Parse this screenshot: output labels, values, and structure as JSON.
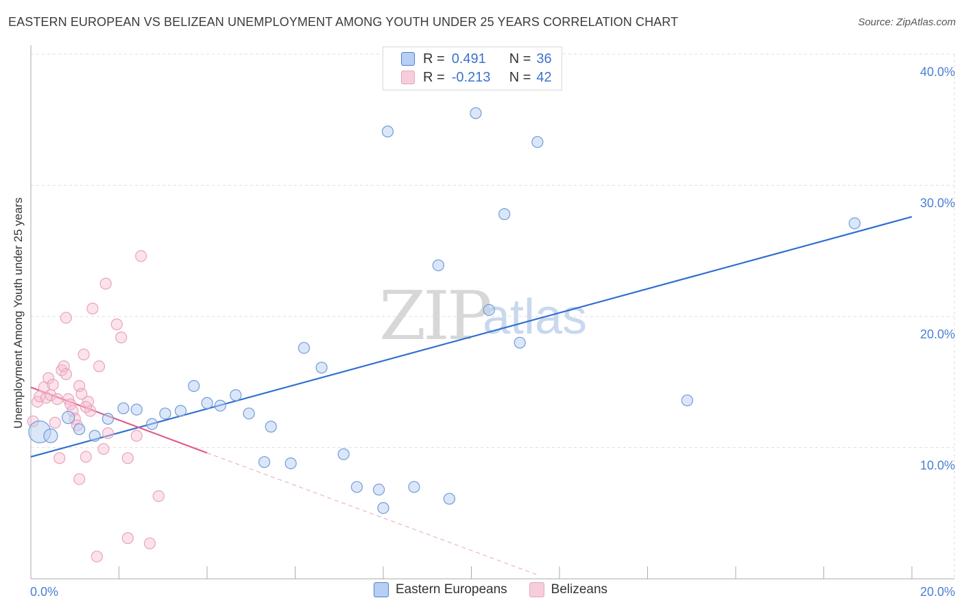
{
  "title": "EASTERN EUROPEAN VS BELIZEAN UNEMPLOYMENT AMONG YOUTH UNDER 25 YEARS CORRELATION CHART",
  "source": "Source: ZipAtlas.com",
  "watermark": {
    "zip": "ZIP",
    "atlas": "atlas"
  },
  "legend": {
    "rows": [
      {
        "r_label": "R =",
        "r_value": "0.491",
        "n_label": "N =",
        "n_value": "36"
      },
      {
        "r_label": "R =",
        "r_value": "-0.213",
        "n_label": "N =",
        "n_value": "42"
      }
    ]
  },
  "bottom_legend": [
    "Eastern Europeans",
    "Belizeans"
  ],
  "colors": {
    "blue": "#4a7fd4",
    "blue_fill": "#b7cff2",
    "pink": "#e0608a",
    "pink_fill": "#f6bfd2",
    "grid": "#dcdcdc"
  },
  "chart_data": {
    "type": "scatter",
    "title": "EASTERN EUROPEAN VS BELIZEAN UNEMPLOYMENT AMONG YOUTH UNDER 25 YEARS CORRELATION CHART",
    "xlabel": "",
    "ylabel": "Unemployment Among Youth under 25 years",
    "xlim": [
      0,
      20
    ],
    "ylim": [
      0,
      40
    ],
    "x_tick_labels": [
      "0.0%",
      "20.0%"
    ],
    "y_ticks": [
      10,
      20,
      30,
      40
    ],
    "y_tick_labels": [
      "10.0%",
      "20.0%",
      "30.0%",
      "40.0%"
    ],
    "series": [
      {
        "name": "Eastern Europeans",
        "color": "#4a7fd4",
        "r": 0.491,
        "n": 36,
        "trend": {
          "x": [
            0.0,
            20.0
          ],
          "y": [
            9.3,
            27.6
          ],
          "dashed_extension": false
        },
        "points": [
          [
            0.2,
            11.2,
            16
          ],
          [
            0.45,
            10.9,
            10
          ],
          [
            0.85,
            12.3,
            9
          ],
          [
            1.1,
            11.4,
            8
          ],
          [
            1.45,
            10.9,
            8
          ],
          [
            1.75,
            12.2,
            8
          ],
          [
            2.1,
            13.0,
            8
          ],
          [
            2.4,
            12.9,
            8
          ],
          [
            2.75,
            11.8,
            8
          ],
          [
            3.05,
            12.6,
            8
          ],
          [
            3.4,
            12.8,
            8
          ],
          [
            3.7,
            14.7,
            8
          ],
          [
            4.0,
            13.4,
            8
          ],
          [
            4.3,
            13.2,
            8
          ],
          [
            4.65,
            14.0,
            8
          ],
          [
            4.95,
            12.6,
            8
          ],
          [
            5.3,
            8.9,
            8
          ],
          [
            5.45,
            11.6,
            8
          ],
          [
            5.9,
            8.8,
            8
          ],
          [
            6.2,
            17.6,
            8
          ],
          [
            6.6,
            16.1,
            8
          ],
          [
            7.1,
            9.5,
            8
          ],
          [
            7.4,
            7.0,
            8
          ],
          [
            7.9,
            6.8,
            8
          ],
          [
            8.0,
            5.4,
            8
          ],
          [
            8.1,
            34.1,
            8
          ],
          [
            8.7,
            7.0,
            8
          ],
          [
            9.25,
            23.9,
            8
          ],
          [
            9.5,
            6.1,
            8
          ],
          [
            10.1,
            35.5,
            8
          ],
          [
            10.4,
            20.5,
            8
          ],
          [
            10.75,
            27.8,
            8
          ],
          [
            11.1,
            18.0,
            8
          ],
          [
            11.5,
            33.3,
            8
          ],
          [
            14.9,
            13.6,
            8
          ],
          [
            18.7,
            27.1,
            8
          ]
        ]
      },
      {
        "name": "Belizeans",
        "color": "#e0608a",
        "r": -0.213,
        "n": 42,
        "trend": {
          "x": [
            0.0,
            4.0
          ],
          "y": [
            14.6,
            9.6
          ],
          "dashed_to": [
            11.5,
            0.3
          ]
        },
        "points": [
          [
            0.05,
            12.0,
            8
          ],
          [
            0.15,
            13.5,
            8
          ],
          [
            0.2,
            13.9,
            8
          ],
          [
            0.3,
            14.6,
            8
          ],
          [
            0.35,
            13.8,
            8
          ],
          [
            0.4,
            15.3,
            8
          ],
          [
            0.45,
            14.0,
            8
          ],
          [
            0.5,
            14.8,
            8
          ],
          [
            0.55,
            11.9,
            8
          ],
          [
            0.6,
            13.7,
            8
          ],
          [
            0.65,
            9.2,
            8
          ],
          [
            0.7,
            15.9,
            8
          ],
          [
            0.75,
            16.2,
            8
          ],
          [
            0.8,
            15.6,
            8
          ],
          [
            0.85,
            13.7,
            8
          ],
          [
            0.8,
            19.9,
            8
          ],
          [
            0.9,
            13.3,
            8
          ],
          [
            0.95,
            12.8,
            8
          ],
          [
            1.0,
            12.2,
            8
          ],
          [
            1.05,
            11.7,
            8
          ],
          [
            1.1,
            14.7,
            8
          ],
          [
            1.1,
            7.6,
            8
          ],
          [
            1.15,
            14.1,
            8
          ],
          [
            1.2,
            17.1,
            8
          ],
          [
            1.25,
            9.3,
            8
          ],
          [
            1.3,
            13.5,
            8
          ],
          [
            1.35,
            12.8,
            8
          ],
          [
            1.4,
            20.6,
            8
          ],
          [
            1.5,
            1.7,
            8
          ],
          [
            1.55,
            16.2,
            8
          ],
          [
            1.65,
            9.9,
            8
          ],
          [
            1.7,
            22.5,
            8
          ],
          [
            1.75,
            11.1,
            8
          ],
          [
            1.95,
            19.4,
            8
          ],
          [
            2.05,
            18.4,
            8
          ],
          [
            2.2,
            3.1,
            8
          ],
          [
            2.2,
            9.2,
            8
          ],
          [
            2.4,
            10.9,
            8
          ],
          [
            2.5,
            24.6,
            8
          ],
          [
            2.7,
            2.7,
            8
          ],
          [
            2.9,
            6.3,
            8
          ],
          [
            1.25,
            13.1,
            8
          ]
        ]
      }
    ]
  }
}
